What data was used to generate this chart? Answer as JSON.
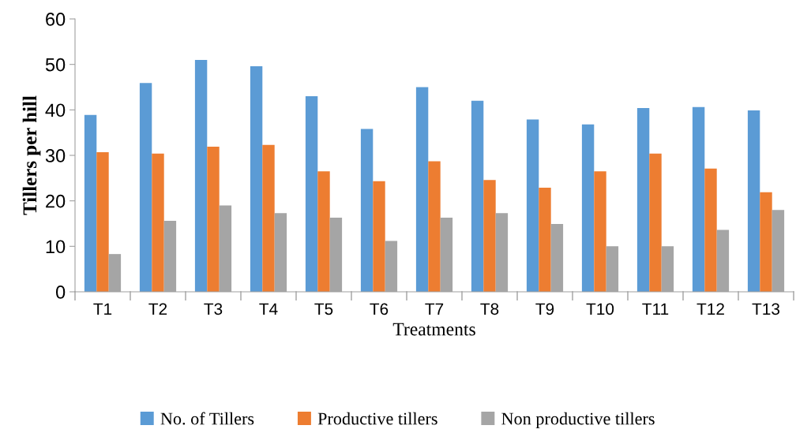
{
  "chart_data": {
    "type": "bar",
    "xlabel": "Treatments",
    "ylabel": "Tillers per hill",
    "categories": [
      "T1",
      "T2",
      "T3",
      "T4",
      "T5",
      "T6",
      "T7",
      "T8",
      "T9",
      "T10",
      "T11",
      "T12",
      "T13"
    ],
    "series": [
      {
        "name": "No. of Tillers",
        "color": "#5b9bd5",
        "values": [
          38.9,
          45.9,
          51.0,
          49.6,
          43.0,
          35.8,
          45.0,
          42.0,
          37.9,
          36.8,
          40.4,
          40.6,
          39.9
        ]
      },
      {
        "name": "Productive tillers",
        "color": "#ed7d31",
        "values": [
          30.7,
          30.4,
          31.9,
          32.3,
          26.5,
          24.3,
          28.7,
          24.6,
          22.9,
          26.5,
          30.4,
          27.1,
          21.9
        ]
      },
      {
        "name": "Non productive tillers",
        "color": "#a5a5a5",
        "values": [
          8.3,
          15.6,
          19.0,
          17.3,
          16.3,
          11.2,
          16.3,
          17.3,
          14.9,
          10.0,
          10.0,
          13.6,
          18.0
        ]
      }
    ],
    "ylim": [
      0,
      60
    ],
    "yticks": [
      0,
      10,
      20,
      30,
      40,
      50,
      60
    ],
    "grid": false,
    "legend": "bottom"
  }
}
